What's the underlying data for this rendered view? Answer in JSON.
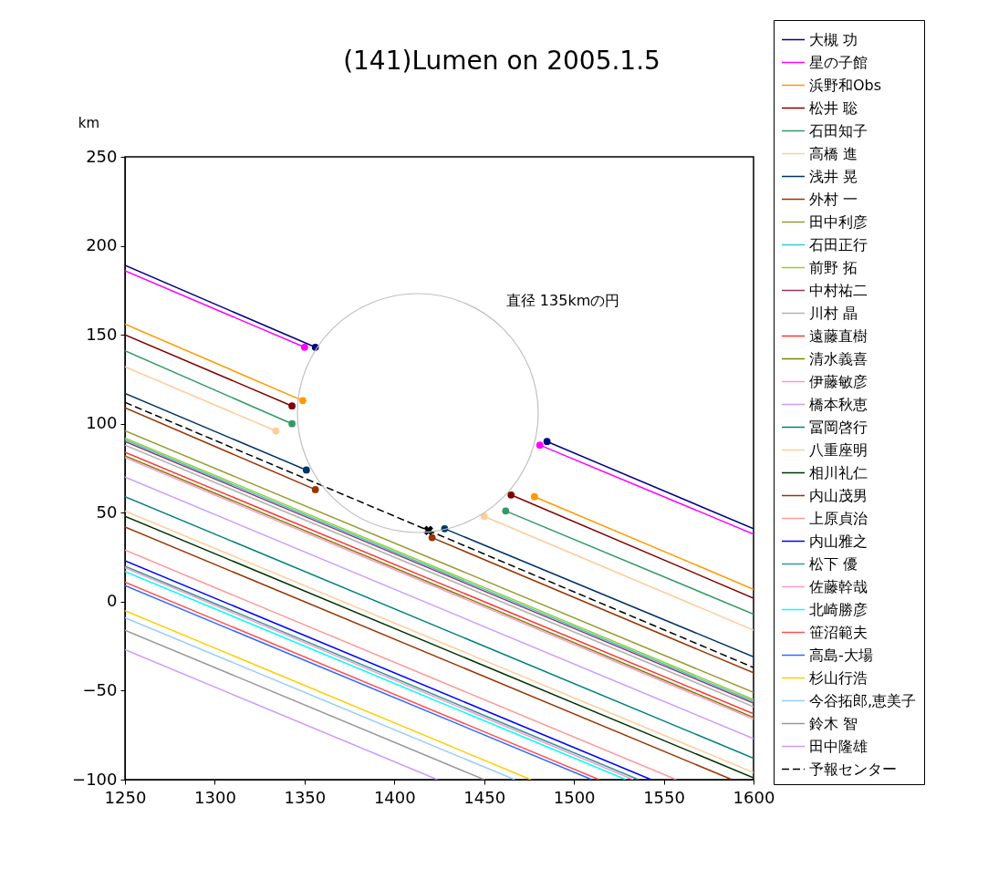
{
  "chart_data": {
    "type": "line",
    "title": "(141)Lumen on 2005.1.5",
    "ylabel": "km",
    "xlim": [
      1250,
      1600
    ],
    "ylim": [
      -100,
      250
    ],
    "xticks": [
      1250,
      1300,
      1350,
      1400,
      1450,
      1500,
      1550,
      1600
    ],
    "yticks": [
      -100,
      -50,
      0,
      50,
      100,
      150,
      200,
      250
    ],
    "legend": "right",
    "line_style": "solid",
    "annotations": [
      "直径 135kmの円"
    ],
    "series": [
      {
        "name": "大槻 功",
        "color": "#000080",
        "marker": "circle",
        "x": [
          1250,
          1356,
          null,
          1485,
          1600
        ],
        "values": [
          189,
          143,
          null,
          90,
          41
        ]
      },
      {
        "name": "星の子館",
        "color": "#ff00ff",
        "marker": "circle",
        "x": [
          1250,
          1350,
          null,
          1481,
          1600
        ],
        "values": [
          186,
          143,
          null,
          88,
          38
        ]
      },
      {
        "name": "浜野和Obs",
        "color": "#ff9900",
        "marker": "circle",
        "x": [
          1250,
          1349,
          null,
          1478,
          1600
        ],
        "values": [
          156,
          113,
          null,
          59,
          7
        ]
      },
      {
        "name": "松井 聡",
        "color": "#800000",
        "marker": "circle",
        "x": [
          1250,
          1343,
          null,
          1465,
          1600
        ],
        "values": [
          150,
          110,
          null,
          60,
          2
        ]
      },
      {
        "name": "石田知子",
        "color": "#339966",
        "marker": "circle",
        "x": [
          1250,
          1343,
          null,
          1462,
          1600
        ],
        "values": [
          141,
          100,
          null,
          51,
          -7
        ]
      },
      {
        "name": "高橋 進",
        "color": "#ffcc99",
        "marker": "circle",
        "x": [
          1250,
          1334,
          null,
          1450,
          1600
        ],
        "values": [
          132,
          96,
          null,
          48,
          -16
        ]
      },
      {
        "name": "浅井 晃",
        "color": "#003366",
        "marker": "circle",
        "x": [
          1250,
          1351,
          null,
          1428,
          1600
        ],
        "values": [
          117,
          74,
          null,
          41,
          -31
        ]
      },
      {
        "name": "外村 一",
        "color": "#993300",
        "marker": "circle",
        "x": [
          1250,
          1356,
          null,
          1421,
          1600
        ],
        "values": [
          109,
          63,
          null,
          36,
          -40
        ]
      },
      {
        "name": "田中利彦",
        "color": "#999933",
        "x": [
          1250,
          1600
        ],
        "values": [
          96,
          -51
        ]
      },
      {
        "name": "石田正行",
        "color": "#33cccc",
        "x": [
          1250,
          1600
        ],
        "values": [
          91,
          -56
        ]
      },
      {
        "name": "前野 拓",
        "color": "#99cc33",
        "x": [
          1250,
          1600
        ],
        "values": [
          92,
          -55
        ]
      },
      {
        "name": "中村祐二",
        "color": "#993366",
        "x": [
          1250,
          1600
        ],
        "values": [
          90,
          -57
        ]
      },
      {
        "name": "川村 晶",
        "color": "#b2b2b2",
        "x": [
          1250,
          1600
        ],
        "values": [
          88,
          -59
        ]
      },
      {
        "name": "遠藤直樹",
        "color": "#ff3333",
        "x": [
          1250,
          1600
        ],
        "values": [
          84,
          -63
        ]
      },
      {
        "name": "清水義喜",
        "color": "#808000",
        "x": [
          1250,
          1600
        ],
        "values": [
          82,
          -65
        ]
      },
      {
        "name": "伊藤敏彦",
        "color": "#ff99cc",
        "x": [
          1250,
          1600
        ],
        "values": [
          81,
          -66
        ]
      },
      {
        "name": "橋本秋恵",
        "color": "#cc99ff",
        "x": [
          1250,
          1600
        ],
        "values": [
          70,
          -77
        ]
      },
      {
        "name": "冨岡啓行",
        "color": "#008080",
        "x": [
          1250,
          1600
        ],
        "values": [
          59,
          -88
        ]
      },
      {
        "name": "八重座明",
        "color": "#ffcc99",
        "x": [
          1250,
          1600
        ],
        "values": [
          51,
          -96
        ]
      },
      {
        "name": "相川礼仁",
        "color": "#003300",
        "x": [
          1250,
          1600
        ],
        "values": [
          48,
          -99
        ]
      },
      {
        "name": "内山茂男",
        "color": "#993300",
        "x": [
          1250,
          1588
        ],
        "values": [
          42,
          -100
        ]
      },
      {
        "name": "上原貞治",
        "color": "#ff9999",
        "x": [
          1250,
          1557
        ],
        "values": [
          29,
          -100
        ]
      },
      {
        "name": "内山雅之",
        "color": "#0000ff",
        "x": [
          1250,
          1543
        ],
        "values": [
          23,
          -100
        ]
      },
      {
        "name": "松下 優",
        "color": "#339999",
        "x": [
          1250,
          1536
        ],
        "values": [
          20,
          -100
        ]
      },
      {
        "name": "佐藤幹哉",
        "color": "#ff99cc",
        "x": [
          1250,
          1533
        ],
        "values": [
          19,
          -100
        ]
      },
      {
        "name": "北崎勝彦",
        "color": "#00ffff",
        "x": [
          1250,
          1529
        ],
        "values": [
          17,
          -100
        ]
      },
      {
        "name": "笹沼範夫",
        "color": "#ff5050",
        "x": [
          1250,
          1514
        ],
        "values": [
          11,
          -100
        ]
      },
      {
        "name": "高島-大場",
        "color": "#3366ff",
        "x": [
          1250,
          1510
        ],
        "values": [
          9,
          -100
        ]
      },
      {
        "name": "杉山行浩",
        "color": "#ffcc00",
        "x": [
          1250,
          1476
        ],
        "values": [
          -5,
          -100
        ]
      },
      {
        "name": "今谷拓郎,恵美子",
        "color": "#99ccff",
        "x": [
          1250,
          1467
        ],
        "values": [
          -9,
          -100
        ]
      },
      {
        "name": "鈴木 智",
        "color": "#999999",
        "x": [
          1250,
          1450
        ],
        "values": [
          -16,
          -100
        ]
      },
      {
        "name": "田中隆雄",
        "color": "#cc99ff",
        "x": [
          1250,
          1424
        ],
        "values": [
          -27,
          -100
        ]
      },
      {
        "name": "予報センター",
        "color": "#000000",
        "line_style": "dashed",
        "x": [
          1250,
          1419,
          1600
        ],
        "values": [
          112,
          40,
          -37
        ]
      },
      {
        "type": "scatter",
        "color": "#000000",
        "marker": "cross",
        "x": [
          1419
        ],
        "values": [
          40
        ]
      }
    ]
  }
}
